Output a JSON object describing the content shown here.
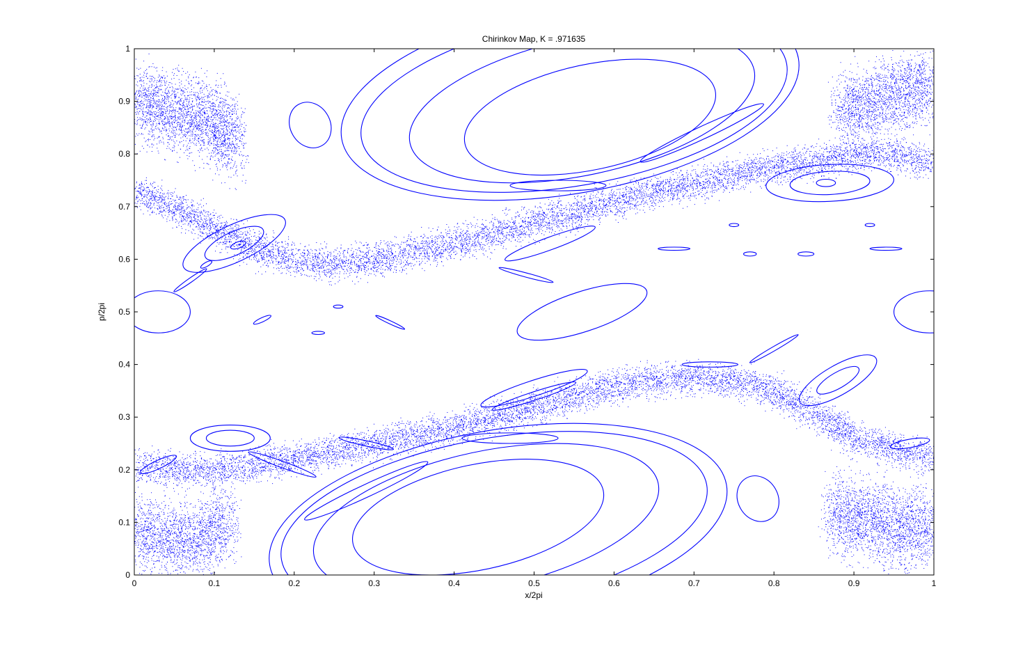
{
  "chart_data": {
    "type": "scatter",
    "title": "Chirinkov Map, K = .971635",
    "xlabel": "x/2pi",
    "ylabel": "p/2pi",
    "xlim": [
      0,
      1
    ],
    "ylim": [
      0,
      1
    ],
    "xticks": [
      "0",
      "0.1",
      "0.2",
      "0.3",
      "0.4",
      "0.5",
      "0.6",
      "0.7",
      "0.8",
      "0.9",
      "1"
    ],
    "yticks": [
      "0",
      "0.1",
      "0.2",
      "0.3",
      "0.4",
      "0.5",
      "0.6",
      "0.7",
      "0.8",
      "0.9",
      "1"
    ],
    "grid": false,
    "legend": "none",
    "series_color": "#0000ff",
    "invariant_curves": [
      {
        "cx": 0.57,
        "cy": 0.87,
        "rx": 0.16,
        "ry": 0.1,
        "angle": -12
      },
      {
        "cx": 0.56,
        "cy": 0.89,
        "rx": 0.22,
        "ry": 0.13,
        "angle": -12
      },
      {
        "cx": 0.55,
        "cy": 0.9,
        "rx": 0.27,
        "ry": 0.16,
        "angle": -10
      },
      {
        "cx": 0.545,
        "cy": 0.905,
        "rx": 0.29,
        "ry": 0.18,
        "angle": -10
      },
      {
        "cx": 0.22,
        "cy": 0.855,
        "rx": 0.025,
        "ry": 0.045,
        "angle": -30
      },
      {
        "cx": 0.53,
        "cy": 0.74,
        "rx": 0.06,
        "ry": 0.01,
        "angle": 0
      },
      {
        "cx": 0.71,
        "cy": 0.84,
        "rx": 0.085,
        "ry": 0.012,
        "angle": -25
      },
      {
        "cx": 0.43,
        "cy": 0.11,
        "rx": 0.16,
        "ry": 0.1,
        "angle": -12
      },
      {
        "cx": 0.44,
        "cy": 0.105,
        "rx": 0.22,
        "ry": 0.13,
        "angle": -12
      },
      {
        "cx": 0.45,
        "cy": 0.1,
        "rx": 0.27,
        "ry": 0.16,
        "angle": -10
      },
      {
        "cx": 0.455,
        "cy": 0.095,
        "rx": 0.29,
        "ry": 0.18,
        "angle": -10
      },
      {
        "cx": 0.78,
        "cy": 0.145,
        "rx": 0.025,
        "ry": 0.045,
        "angle": -30
      },
      {
        "cx": 0.47,
        "cy": 0.26,
        "rx": 0.06,
        "ry": 0.01,
        "angle": 0
      },
      {
        "cx": 0.29,
        "cy": 0.16,
        "rx": 0.085,
        "ry": 0.012,
        "angle": -25
      },
      {
        "cx": 0.125,
        "cy": 0.63,
        "rx": 0.04,
        "ry": 0.022,
        "angle": -25
      },
      {
        "cx": 0.125,
        "cy": 0.63,
        "rx": 0.07,
        "ry": 0.035,
        "angle": -25
      },
      {
        "cx": 0.13,
        "cy": 0.627,
        "rx": 0.01,
        "ry": 0.006,
        "angle": -20
      },
      {
        "cx": 0.87,
        "cy": 0.745,
        "rx": 0.05,
        "ry": 0.022,
        "angle": -3
      },
      {
        "cx": 0.87,
        "cy": 0.745,
        "rx": 0.08,
        "ry": 0.035,
        "angle": -3
      },
      {
        "cx": 0.865,
        "cy": 0.745,
        "rx": 0.012,
        "ry": 0.007,
        "angle": 0
      },
      {
        "cx": 0.12,
        "cy": 0.26,
        "rx": 0.03,
        "ry": 0.015,
        "angle": 0
      },
      {
        "cx": 0.12,
        "cy": 0.26,
        "rx": 0.05,
        "ry": 0.025,
        "angle": 0
      },
      {
        "cx": 0.88,
        "cy": 0.37,
        "rx": 0.03,
        "ry": 0.015,
        "angle": -30
      },
      {
        "cx": 0.88,
        "cy": 0.37,
        "rx": 0.055,
        "ry": 0.028,
        "angle": -30
      },
      {
        "cx": 0.56,
        "cy": 0.5,
        "rx": 0.085,
        "ry": 0.038,
        "angle": -18
      },
      {
        "cx": 0.03,
        "cy": 0.5,
        "rx": 0.04,
        "ry": 0.04,
        "angle": 0
      },
      {
        "cx": 0.995,
        "cy": 0.5,
        "rx": 0.045,
        "ry": 0.04,
        "angle": 0
      },
      {
        "cx": 0.52,
        "cy": 0.63,
        "rx": 0.06,
        "ry": 0.012,
        "angle": -20
      },
      {
        "cx": 0.5,
        "cy": 0.355,
        "rx": 0.07,
        "ry": 0.015,
        "angle": -18
      },
      {
        "cx": 0.5,
        "cy": 0.34,
        "rx": 0.055,
        "ry": 0.008,
        "angle": -18
      },
      {
        "cx": 0.72,
        "cy": 0.4,
        "rx": 0.035,
        "ry": 0.005,
        "angle": 0
      },
      {
        "cx": 0.97,
        "cy": 0.25,
        "rx": 0.025,
        "ry": 0.008,
        "angle": -10
      },
      {
        "cx": 0.03,
        "cy": 0.21,
        "rx": 0.025,
        "ry": 0.008,
        "angle": -25
      },
      {
        "cx": 0.185,
        "cy": 0.21,
        "rx": 0.045,
        "ry": 0.006,
        "angle": 20
      },
      {
        "cx": 0.29,
        "cy": 0.25,
        "rx": 0.035,
        "ry": 0.005,
        "angle": 12
      },
      {
        "cx": 0.675,
        "cy": 0.62,
        "rx": 0.02,
        "ry": 0.003,
        "angle": 0
      },
      {
        "cx": 0.94,
        "cy": 0.62,
        "rx": 0.02,
        "ry": 0.003,
        "angle": 0
      },
      {
        "cx": 0.77,
        "cy": 0.61,
        "rx": 0.008,
        "ry": 0.004,
        "angle": 0
      },
      {
        "cx": 0.84,
        "cy": 0.61,
        "rx": 0.01,
        "ry": 0.004,
        "angle": 0
      },
      {
        "cx": 0.75,
        "cy": 0.665,
        "rx": 0.006,
        "ry": 0.003,
        "angle": 0
      },
      {
        "cx": 0.92,
        "cy": 0.665,
        "rx": 0.006,
        "ry": 0.003,
        "angle": 0
      },
      {
        "cx": 0.255,
        "cy": 0.51,
        "rx": 0.006,
        "ry": 0.003,
        "angle": 0
      },
      {
        "cx": 0.23,
        "cy": 0.46,
        "rx": 0.008,
        "ry": 0.003,
        "angle": 0
      },
      {
        "cx": 0.16,
        "cy": 0.485,
        "rx": 0.012,
        "ry": 0.004,
        "angle": -25
      },
      {
        "cx": 0.32,
        "cy": 0.48,
        "rx": 0.02,
        "ry": 0.003,
        "angle": 25
      },
      {
        "cx": 0.07,
        "cy": 0.56,
        "rx": 0.025,
        "ry": 0.004,
        "angle": -35
      },
      {
        "cx": 0.09,
        "cy": 0.59,
        "rx": 0.008,
        "ry": 0.004,
        "angle": -30
      },
      {
        "cx": 0.49,
        "cy": 0.57,
        "rx": 0.035,
        "ry": 0.004,
        "angle": 15
      },
      {
        "cx": 0.8,
        "cy": 0.43,
        "rx": 0.035,
        "ry": 0.004,
        "angle": -30
      }
    ],
    "chaotic_bands": [
      {
        "center": [
          [
            0.0,
            0.73
          ],
          [
            0.05,
            0.7
          ],
          [
            0.1,
            0.66
          ],
          [
            0.15,
            0.62
          ],
          [
            0.2,
            0.6
          ],
          [
            0.25,
            0.59
          ],
          [
            0.3,
            0.6
          ],
          [
            0.35,
            0.615
          ],
          [
            0.4,
            0.63
          ],
          [
            0.45,
            0.65
          ],
          [
            0.5,
            0.67
          ],
          [
            0.55,
            0.69
          ],
          [
            0.6,
            0.71
          ],
          [
            0.65,
            0.73
          ],
          [
            0.7,
            0.745
          ],
          [
            0.75,
            0.76
          ],
          [
            0.8,
            0.775
          ],
          [
            0.85,
            0.785
          ],
          [
            0.9,
            0.8
          ],
          [
            0.95,
            0.8
          ],
          [
            1.0,
            0.78
          ]
        ],
        "width": 0.09
      },
      {
        "center": [
          [
            0.0,
            0.21
          ],
          [
            0.05,
            0.2
          ],
          [
            0.1,
            0.2
          ],
          [
            0.15,
            0.21
          ],
          [
            0.2,
            0.22
          ],
          [
            0.25,
            0.235
          ],
          [
            0.3,
            0.25
          ],
          [
            0.35,
            0.265
          ],
          [
            0.4,
            0.28
          ],
          [
            0.45,
            0.3
          ],
          [
            0.5,
            0.32
          ],
          [
            0.55,
            0.34
          ],
          [
            0.6,
            0.36
          ],
          [
            0.65,
            0.37
          ],
          [
            0.7,
            0.375
          ],
          [
            0.75,
            0.37
          ],
          [
            0.8,
            0.35
          ],
          [
            0.85,
            0.31
          ],
          [
            0.9,
            0.26
          ],
          [
            0.95,
            0.24
          ],
          [
            1.0,
            0.22
          ]
        ],
        "width": 0.09
      },
      {
        "center": [
          [
            0.0,
            0.9
          ],
          [
            0.05,
            0.88
          ],
          [
            0.1,
            0.86
          ],
          [
            0.13,
            0.82
          ]
        ],
        "width": 0.22
      },
      {
        "center": [
          [
            0.88,
            0.88
          ],
          [
            0.93,
            0.9
          ],
          [
            0.97,
            0.92
          ],
          [
            1.0,
            0.93
          ]
        ],
        "width": 0.2
      },
      {
        "center": [
          [
            0.0,
            0.08
          ],
          [
            0.04,
            0.07
          ],
          [
            0.08,
            0.07
          ],
          [
            0.12,
            0.1
          ]
        ],
        "width": 0.2
      },
      {
        "center": [
          [
            0.87,
            0.12
          ],
          [
            0.92,
            0.1
          ],
          [
            0.96,
            0.09
          ],
          [
            1.0,
            0.09
          ]
        ],
        "width": 0.22
      }
    ]
  }
}
